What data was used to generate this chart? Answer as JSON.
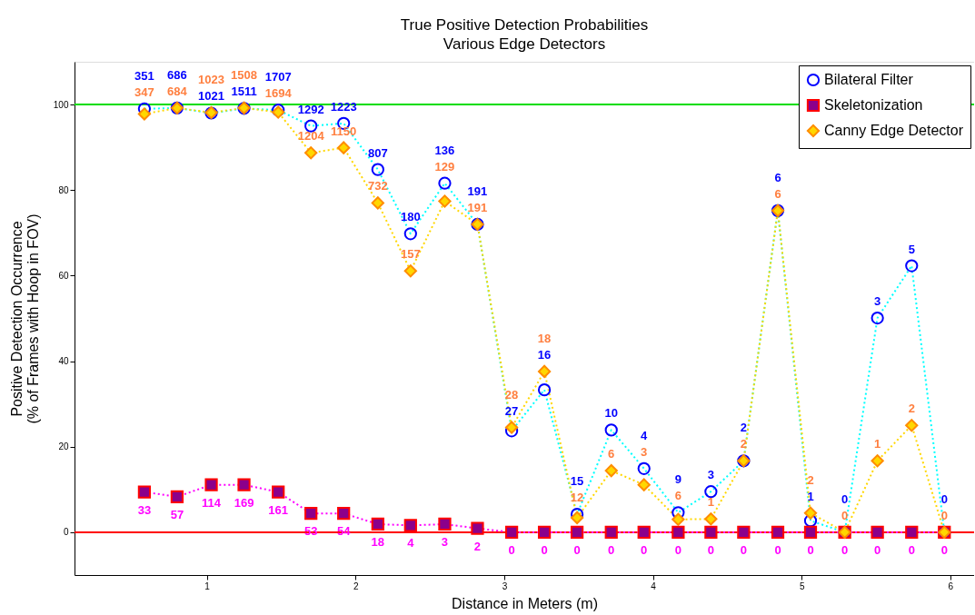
{
  "chart_data": {
    "type": "line",
    "title": "True Positive Detection Probabilities",
    "subtitle": "Various Edge Detectors",
    "xlabel": "Distance in Meters (m)",
    "ylabel": "Positive Detection Occurrence\n(% of Frames with Hoop in FOV)",
    "x": [
      0.58,
      0.8,
      1.03,
      1.25,
      1.48,
      1.7,
      1.92,
      2.15,
      2.37,
      2.6,
      2.82,
      3.05,
      3.27,
      3.49,
      3.72,
      3.94,
      4.17,
      4.39,
      4.61,
      4.84,
      5.06,
      5.29,
      5.51,
      5.74,
      5.96
    ],
    "xlim": [
      0.11,
      6.16
    ],
    "xticks": [
      1,
      2,
      3,
      4,
      5,
      6
    ],
    "ylim": [
      -10,
      110
    ],
    "yticks": [
      0,
      20,
      40,
      60,
      80,
      100
    ],
    "grid": false,
    "legend": "top right",
    "line_style": "dotted",
    "series": [
      {
        "name": "Bilateral Filter",
        "color": "#0000ff",
        "marker": "circle",
        "values": [
          99.0,
          99.2,
          98.0,
          99.1,
          98.7,
          95.0,
          95.6,
          84.8,
          69.8,
          81.6,
          72.0,
          23.7,
          33.3,
          4.2,
          23.9,
          14.9,
          4.6,
          9.5,
          16.7,
          75.2,
          2.7,
          0,
          50.1,
          62.3,
          0
        ]
      },
      {
        "name": "Skeletonization",
        "color": "#ff0000",
        "marker": "square",
        "values": [
          9.4,
          8.3,
          11.1,
          11.1,
          9.4,
          4.4,
          4.4,
          1.9,
          1.6,
          1.9,
          0.9,
          0,
          0,
          0,
          0,
          0,
          0,
          0,
          0,
          0,
          0,
          0,
          0,
          0,
          0
        ]
      },
      {
        "name": "Canny Edge Detector",
        "color": "#ffd700",
        "marker": "diamond",
        "values": [
          97.8,
          99.2,
          98.1,
          99.2,
          98.2,
          88.7,
          89.9,
          77.0,
          61.1,
          77.4,
          72.0,
          24.5,
          37.6,
          3.4,
          14.4,
          11.1,
          3.0,
          3.1,
          16.7,
          75.2,
          4.5,
          0,
          16.7,
          25.0,
          0
        ]
      }
    ],
    "annotations": [
      {
        "text": "351",
        "x": 0.58,
        "y": 99.0
      },
      {
        "text": "686",
        "x": 0.8,
        "y": 99.2
      },
      {
        "text": "1021",
        "x": 1.03,
        "y": 98.0
      },
      {
        "text": "1511",
        "x": 1.25,
        "y": 99.1
      },
      {
        "text": "1707",
        "x": 1.48,
        "y": 98.7
      },
      {
        "text": "1292",
        "x": 1.7,
        "y": 95.0
      },
      {
        "text": "1223",
        "x": 1.92,
        "y": 95.6
      },
      {
        "text": "807",
        "x": 2.15,
        "y": 84.8
      },
      {
        "text": "180",
        "x": 2.37,
        "y": 69.8
      },
      {
        "text": "136",
        "x": 2.6,
        "y": 81.6
      },
      {
        "text": "191",
        "x": 2.82,
        "y": 72.0
      },
      {
        "text": "27",
        "x": 3.05,
        "y": 23.7
      },
      {
        "text": "16",
        "x": 3.27,
        "y": 33.3
      },
      {
        "text": "15",
        "x": 3.49,
        "y": 4.2
      },
      {
        "text": "10",
        "x": 3.72,
        "y": 23.9
      },
      {
        "text": "4",
        "x": 3.94,
        "y": 14.9
      },
      {
        "text": "9",
        "x": 4.17,
        "y": 4.6
      },
      {
        "text": "3",
        "x": 4.39,
        "y": 9.5
      },
      {
        "text": "2",
        "x": 4.61,
        "y": 16.7
      },
      {
        "text": "6",
        "x": 4.84,
        "y": 75.2
      },
      {
        "text": "1",
        "x": 5.06,
        "y": 2.7
      },
      {
        "text": "0",
        "x": 5.29,
        "y": 0
      },
      {
        "text": "3",
        "x": 5.51,
        "y": 50.1
      },
      {
        "text": "5",
        "x": 5.74,
        "y": 62.3
      },
      {
        "text": "0",
        "x": 5.96,
        "y": 0
      },
      {
        "text": "33",
        "x": 0.58,
        "y": 9.4
      },
      {
        "text": "57",
        "x": 0.8,
        "y": 8.3
      },
      {
        "text": "114",
        "x": 1.03,
        "y": 11.1
      },
      {
        "text": "169",
        "x": 1.25,
        "y": 11.1
      },
      {
        "text": "161",
        "x": 1.48,
        "y": 9.4
      },
      {
        "text": "53",
        "x": 1.7,
        "y": 4.4
      },
      {
        "text": "54",
        "x": 1.92,
        "y": 4.4
      },
      {
        "text": "18",
        "x": 2.15,
        "y": 1.9
      },
      {
        "text": "4",
        "x": 2.37,
        "y": 1.6
      },
      {
        "text": "3",
        "x": 2.6,
        "y": 1.9
      },
      {
        "text": "2",
        "x": 2.82,
        "y": 0.9
      },
      {
        "text": "0",
        "x": 3.05,
        "y": 0
      },
      {
        "text": "0",
        "x": 3.27,
        "y": 0
      },
      {
        "text": "0",
        "x": 3.49,
        "y": 0
      },
      {
        "text": "0",
        "x": 3.72,
        "y": 0
      },
      {
        "text": "0",
        "x": 3.94,
        "y": 0
      },
      {
        "text": "0",
        "x": 4.17,
        "y": 0
      },
      {
        "text": "0",
        "x": 4.39,
        "y": 0
      },
      {
        "text": "0",
        "x": 4.61,
        "y": 0
      },
      {
        "text": "0",
        "x": 4.84,
        "y": 0
      },
      {
        "text": "0",
        "x": 5.06,
        "y": 0
      },
      {
        "text": "0",
        "x": 5.29,
        "y": 0
      },
      {
        "text": "0",
        "x": 5.51,
        "y": 0
      },
      {
        "text": "0",
        "x": 5.74,
        "y": 0
      },
      {
        "text": "0",
        "x": 5.96,
        "y": 0
      },
      {
        "text": "347",
        "x": 0.58,
        "y": 97.8
      },
      {
        "text": "684",
        "x": 0.8,
        "y": 99.2
      },
      {
        "text": "1023",
        "x": 1.03,
        "y": 98.1
      },
      {
        "text": "1508",
        "x": 1.25,
        "y": 99.2
      },
      {
        "text": "1694",
        "x": 1.48,
        "y": 98.2
      },
      {
        "text": "1204",
        "x": 1.7,
        "y": 88.7
      },
      {
        "text": "1150",
        "x": 1.92,
        "y": 89.9
      },
      {
        "text": "732",
        "x": 2.15,
        "y": 77.0
      },
      {
        "text": "157",
        "x": 2.37,
        "y": 61.1
      },
      {
        "text": "129",
        "x": 2.6,
        "y": 77.4
      },
      {
        "text": "191",
        "x": 2.82,
        "y": 72.0
      },
      {
        "text": "28",
        "x": 3.05,
        "y": 24.5
      },
      {
        "text": "18",
        "x": 3.27,
        "y": 37.6
      },
      {
        "text": "12",
        "x": 3.49,
        "y": 3.4
      },
      {
        "text": "6",
        "x": 3.72,
        "y": 14.4
      },
      {
        "text": "3",
        "x": 3.94,
        "y": 11.1
      },
      {
        "text": "6",
        "x": 4.17,
        "y": 3.0
      },
      {
        "text": "1",
        "x": 4.39,
        "y": 3.1
      },
      {
        "text": "2",
        "x": 4.61,
        "y": 16.7
      },
      {
        "text": "6",
        "x": 4.84,
        "y": 75.2
      },
      {
        "text": "2",
        "x": 5.06,
        "y": 4.5
      },
      {
        "text": "0",
        "x": 5.29,
        "y": 0
      },
      {
        "text": "1",
        "x": 5.51,
        "y": 16.7
      },
      {
        "text": "2",
        "x": 5.74,
        "y": 25.0
      },
      {
        "text": "0",
        "x": 5.96,
        "y": 0
      }
    ],
    "ref_lines": [
      {
        "axis": "y",
        "value": 100,
        "color": "#00dd00"
      },
      {
        "axis": "y",
        "value": 0,
        "color": "#ff0000"
      }
    ]
  }
}
